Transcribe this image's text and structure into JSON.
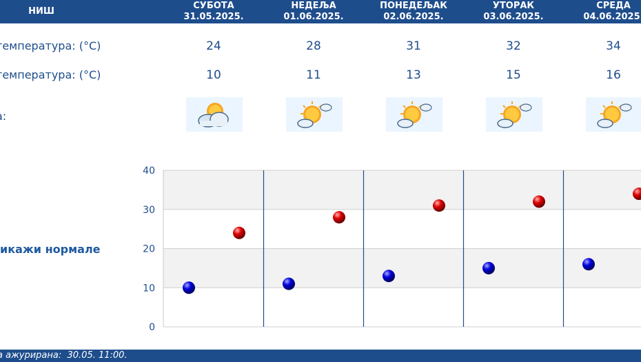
{
  "header": {
    "city": "НИШ",
    "days": [
      {
        "name": "СУБОТА",
        "date": "31.05.2025."
      },
      {
        "name": "НЕДЕЉА",
        "date": "01.06.2025."
      },
      {
        "name": "ПОНЕДЕЉАК",
        "date": "02.06.2025."
      },
      {
        "name": "УТОРАК",
        "date": "03.06.2025."
      },
      {
        "name": "СРЕДА",
        "date": "04.06.2025."
      }
    ]
  },
  "rows": {
    "max_label": "температура: (°C)",
    "min_label": "температура: (°C)",
    "icon_label": "а:",
    "max_values": [
      "24",
      "28",
      "31",
      "32",
      "34"
    ],
    "min_values": [
      "10",
      "11",
      "13",
      "15",
      "16"
    ],
    "icons": [
      "cloud-sun-icon",
      "sun-cloud-icon",
      "sun-cloud-icon",
      "sun-cloud-icon",
      "sun-cloud-icon"
    ]
  },
  "normals_link": "икажи нормале",
  "footer": {
    "text": "а ажурирана:  30.05. 11:00."
  },
  "colors": {
    "header_bg": "#1e4d8c",
    "max_point": "#cc0000",
    "min_point": "#0000cc",
    "text": "#1e4d8c"
  },
  "chart_data": {
    "type": "scatter",
    "categories": [
      "31.05.2025.",
      "01.06.2025.",
      "02.06.2025.",
      "03.06.2025.",
      "04.06.2025."
    ],
    "series": [
      {
        "values": [
          10,
          11,
          13,
          15,
          16
        ],
        "color": "#0000cc"
      },
      {
        "values": [
          24,
          28,
          31,
          32,
          34
        ],
        "color": "#cc0000"
      }
    ],
    "ylim": [
      0,
      40
    ],
    "yticks": [
      "0",
      "10",
      "20",
      "30",
      "40"
    ],
    "grid": true
  }
}
